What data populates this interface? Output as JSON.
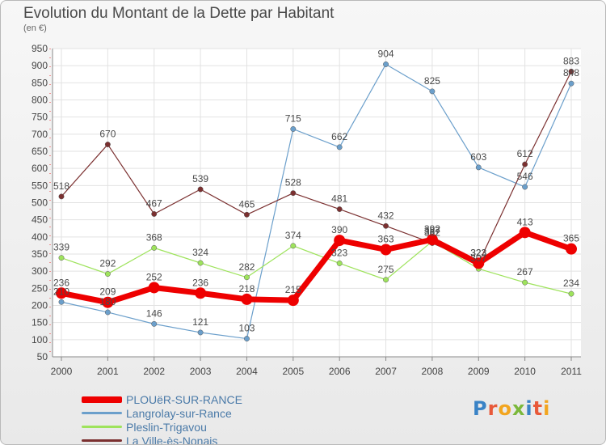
{
  "title": "Evolution du Montant de la Dette par Habitant",
  "subtitle": "(en €)",
  "logo": {
    "letters": [
      "P",
      "r",
      "o",
      "x",
      "i",
      "t",
      "i"
    ],
    "colors": [
      "#3a83c6",
      "#e8593a",
      "#f2a51f",
      "#7bb83b",
      "#3a83c6",
      "#e8593a",
      "#f2a51f"
    ]
  },
  "chart_data": {
    "type": "line",
    "title": "Evolution du Montant de la Dette par Habitant",
    "subtitle": "(en €)",
    "xlabel": "",
    "ylabel": "",
    "categories": [
      "2000",
      "2001",
      "2002",
      "2003",
      "2004",
      "2005",
      "2006",
      "2007",
      "2008",
      "2009",
      "2010",
      "2011"
    ],
    "ylim": [
      50,
      950
    ],
    "yticks": [
      50,
      100,
      150,
      200,
      250,
      300,
      350,
      400,
      450,
      500,
      550,
      600,
      650,
      700,
      750,
      800,
      850,
      900,
      950
    ],
    "grid": true,
    "legend_position": "bottom-left",
    "series": [
      {
        "name": "PLOUëR-SUR-RANCE",
        "color": "#ee0000",
        "width": 7,
        "values": [
          236,
          209,
          252,
          236,
          218,
          215,
          390,
          363,
          392,
          323,
          413,
          365
        ]
      },
      {
        "name": "Langrolay-sur-Rance",
        "color": "#6b9fcb",
        "width": 1.2,
        "values": [
          210,
          180,
          146,
          121,
          103,
          715,
          662,
          904,
          825,
          603,
          546,
          848
        ]
      },
      {
        "name": "Pleslin-Trigavou",
        "color": "#9ee35c",
        "width": 1.2,
        "values": [
          339,
          292,
          368,
          324,
          282,
          374,
          323,
          275,
          387,
          307,
          267,
          234
        ]
      },
      {
        "name": "La Ville-ès-Nonais",
        "color": "#7b3030",
        "width": 1.2,
        "values": [
          518,
          670,
          467,
          539,
          465,
          528,
          481,
          432,
          382,
          323,
          612,
          883
        ]
      }
    ]
  }
}
